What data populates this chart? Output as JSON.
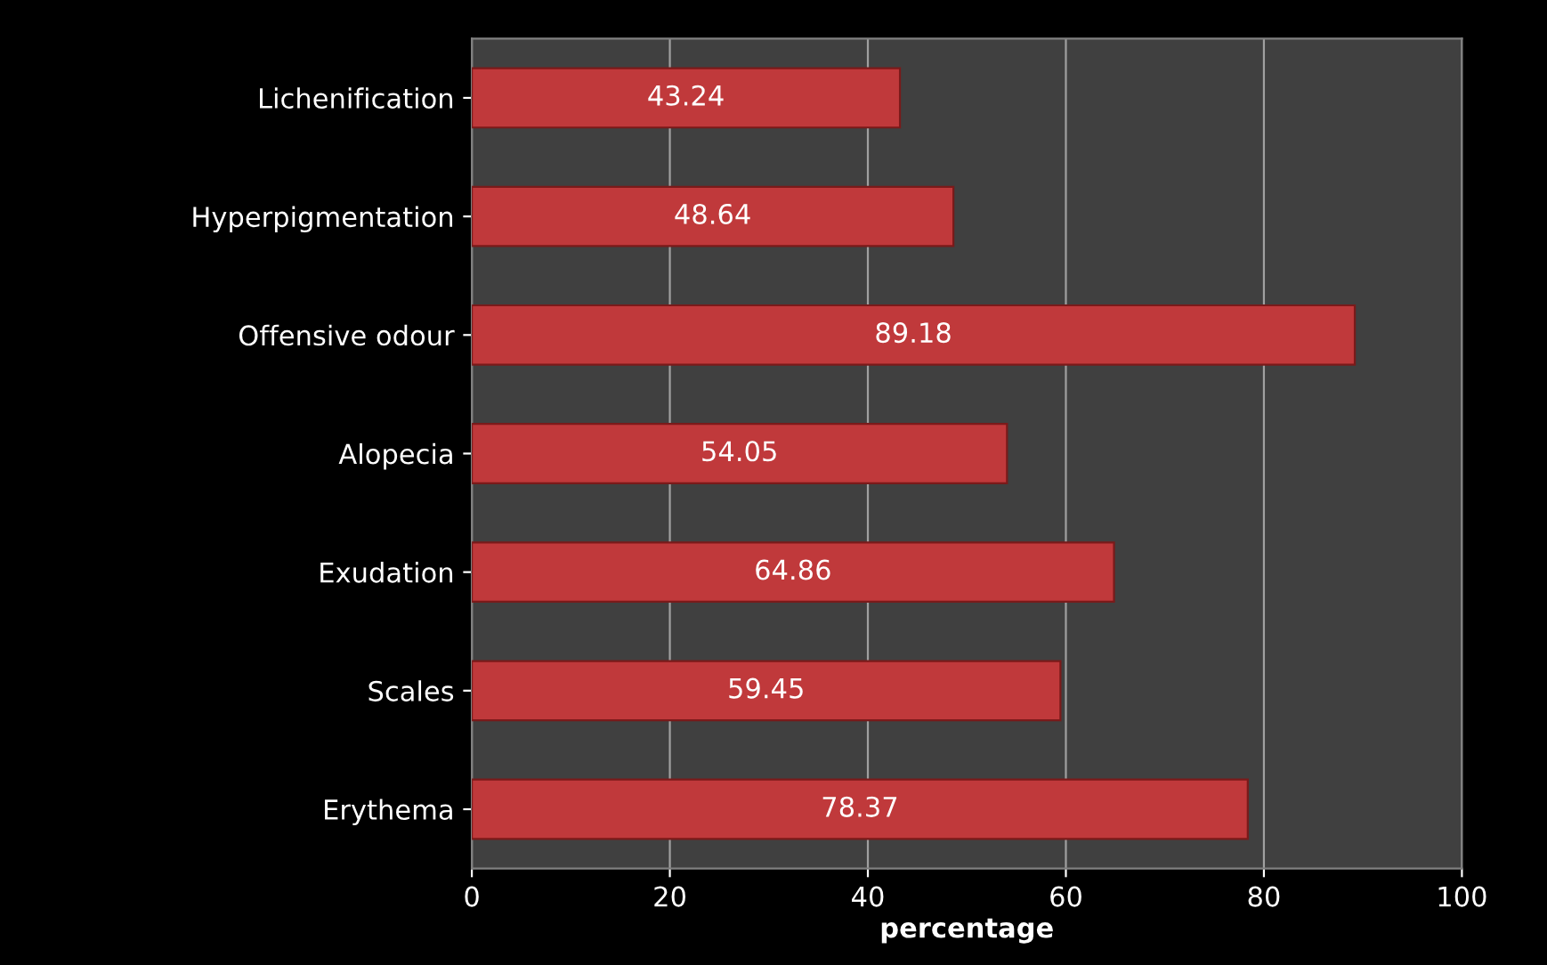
{
  "chart_data": {
    "type": "bar",
    "orientation": "horizontal",
    "xlabel": "percentage",
    "categories": [
      "Lichenification",
      "Hyperpigmentation",
      "Offensive odour",
      "Alopecia",
      "Exudation",
      "Scales",
      "Erythema"
    ],
    "values": [
      43.24,
      48.64,
      89.18,
      54.05,
      64.86,
      59.45,
      78.37
    ],
    "color": "#c0393b",
    "xlim": [
      0,
      100
    ],
    "xticks": [
      0,
      20,
      40,
      60,
      80,
      100
    ],
    "grid": "x",
    "data_labels": true
  }
}
